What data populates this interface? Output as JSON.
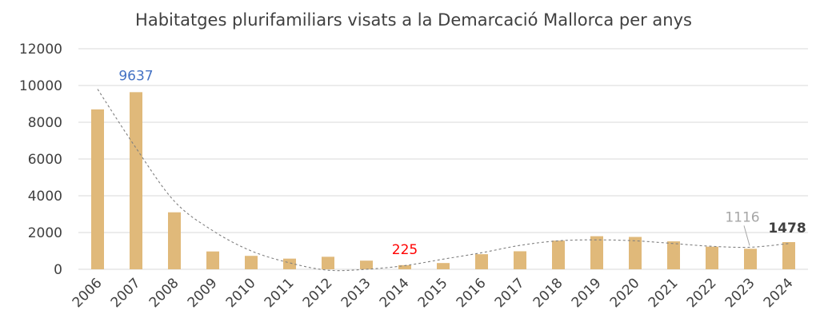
{
  "chart_data": {
    "type": "bar",
    "title": "Habitatges plurifamiliars visats a la Demarcació Mallorca per anys",
    "xlabel": "",
    "ylabel": "",
    "ylim": [
      0,
      12000
    ],
    "yticks": [
      0,
      2000,
      4000,
      6000,
      8000,
      10000,
      12000
    ],
    "grid": true,
    "legend": "none",
    "bar_color": "#e0b97a",
    "categories": [
      "2006",
      "2007",
      "2008",
      "2009",
      "2010",
      "2011",
      "2012",
      "2013",
      "2014",
      "2015",
      "2016",
      "2017",
      "2018",
      "2019",
      "2020",
      "2021",
      "2022",
      "2023",
      "2024"
    ],
    "values": [
      8700,
      9637,
      3100,
      970,
      730,
      580,
      680,
      470,
      225,
      340,
      820,
      980,
      1560,
      1800,
      1760,
      1520,
      1230,
      1116,
      1478
    ],
    "trendline": {
      "style": "dashed",
      "color": "#7f7f7f",
      "values": [
        9800,
        6600,
        3700,
        2100,
        1000,
        350,
        -50,
        0,
        200,
        550,
        900,
        1300,
        1550,
        1600,
        1550,
        1400,
        1250,
        1200,
        1400
      ]
    },
    "annotations": [
      {
        "category": "2007",
        "text": "9637",
        "color": "#4472c4"
      },
      {
        "category": "2014",
        "text": "225",
        "color": "#ff0000"
      },
      {
        "category": "2023",
        "text": "1116",
        "color": "#a6a6a6"
      },
      {
        "category": "2024",
        "text": "1478",
        "color": "#404040"
      }
    ]
  }
}
